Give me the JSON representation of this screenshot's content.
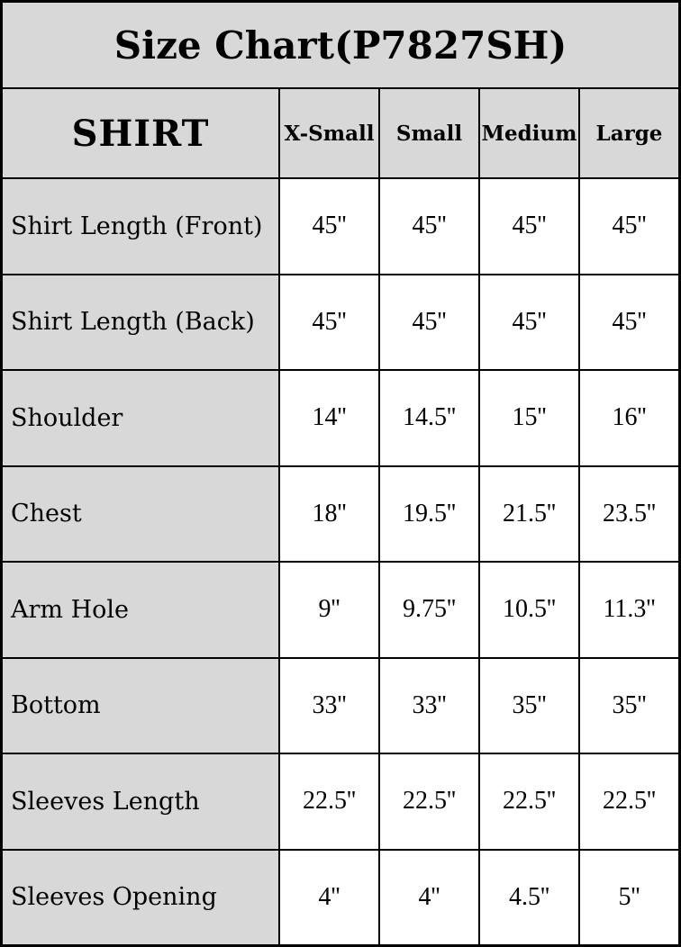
{
  "title": "Size Chart(P7827SH)",
  "colors": {
    "header_bg": "#d8d8d8",
    "value_bg": "#ffffff",
    "grid_line": "#000000",
    "text": "#000000"
  },
  "chart_data": {
    "type": "table",
    "title": "Size Chart(P7827SH)",
    "corner_header": "SHIRT",
    "units": "inches",
    "columns": [
      "X-Small",
      "Small",
      "Medium",
      "Large"
    ],
    "rows": [
      {
        "label": "Shirt Length (Front)",
        "values": [
          "45''",
          "45''",
          "45''",
          "45''"
        ]
      },
      {
        "label": "Shirt Length (Back)",
        "values": [
          "45''",
          "45''",
          "45''",
          "45''"
        ]
      },
      {
        "label": "Shoulder",
        "values": [
          "14''",
          "14.5''",
          "15''",
          "16''"
        ]
      },
      {
        "label": "Chest",
        "values": [
          "18''",
          "19.5''",
          "21.5''",
          "23.5''"
        ]
      },
      {
        "label": "Arm Hole",
        "values": [
          "9''",
          "9.75''",
          "10.5''",
          "11.3''"
        ]
      },
      {
        "label": "Bottom",
        "values": [
          "33''",
          "33''",
          "35''",
          "35''"
        ]
      },
      {
        "label": "Sleeves Length",
        "values": [
          "22.5''",
          "22.5''",
          "22.5''",
          "22.5''"
        ]
      },
      {
        "label": "Sleeves Opening",
        "values": [
          "4''",
          "4''",
          "4.5''",
          "5''"
        ]
      }
    ]
  }
}
